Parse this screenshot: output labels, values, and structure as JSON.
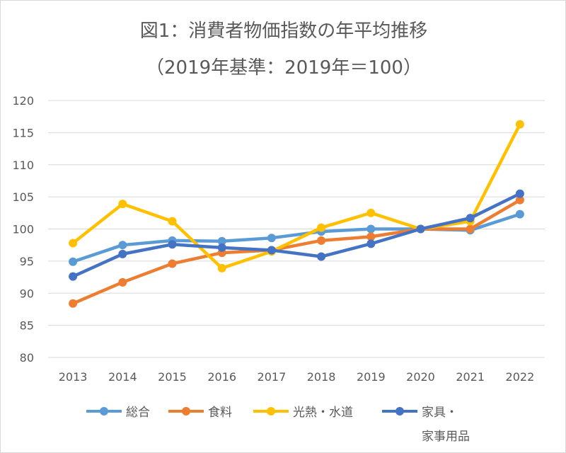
{
  "title_line1": "図1：消費者物価指数の年平均推移",
  "title_line2": "（2019年基準：2019年＝100）",
  "chart_data": {
    "type": "line",
    "title": "図1：消費者物価指数の年平均推移",
    "subtitle": "（2019年基準：2019年＝100）",
    "categories": [
      "2013",
      "2014",
      "2015",
      "2016",
      "2017",
      "2018",
      "2019",
      "2020",
      "2021",
      "2022"
    ],
    "ylim": [
      80,
      120
    ],
    "yticks": [
      80,
      85,
      90,
      95,
      100,
      105,
      110,
      115,
      120
    ],
    "grid": true,
    "legend_position": "bottom",
    "series": [
      {
        "name": "総合",
        "color": "#5B9BD5",
        "values": [
          94.9,
          97.5,
          98.2,
          98.1,
          98.6,
          99.6,
          100.0,
          100.0,
          99.8,
          102.3
        ]
      },
      {
        "name": "食料",
        "color": "#ED7D31",
        "values": [
          88.4,
          91.7,
          94.6,
          96.3,
          96.7,
          98.2,
          98.8,
          100.0,
          100.0,
          104.5
        ]
      },
      {
        "name": "光熱・水道",
        "color": "#FFC000",
        "values": [
          97.8,
          103.9,
          101.2,
          93.9,
          96.5,
          100.2,
          102.5,
          100.0,
          101.2,
          116.3
        ]
      },
      {
        "name": "家具・家事用品",
        "label_line1": "家具・",
        "label_line2": "家事用品",
        "color": "#4472C4",
        "values": [
          92.6,
          96.1,
          97.6,
          97.1,
          96.7,
          95.7,
          97.7,
          100.0,
          101.7,
          105.5
        ]
      }
    ]
  }
}
